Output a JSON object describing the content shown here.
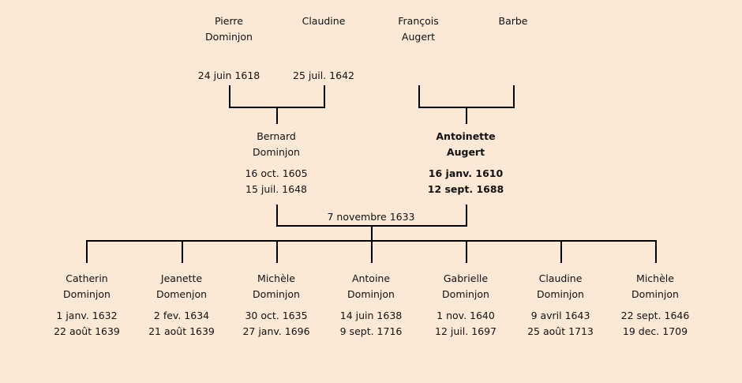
{
  "grandparents": [
    {
      "first": "Pierre",
      "last": "Dominjon",
      "date": "24 juin 1618"
    },
    {
      "first": "Claudine",
      "last": "",
      "date": "25 juil. 1642"
    },
    {
      "first": "François",
      "last": "Augert",
      "date": ""
    },
    {
      "first": "Barbe",
      "last": "",
      "date": ""
    }
  ],
  "parents": [
    {
      "first": "Bernard",
      "last": "Dominjon",
      "birth": "16 oct. 1605",
      "death": "15 juil. 1648",
      "highlighted": false
    },
    {
      "first": "Antoinette",
      "last": "Augert",
      "birth": "16 janv. 1610",
      "death": "12 sept. 1688",
      "highlighted": true
    }
  ],
  "marriage": "7 novembre 1633",
  "children": [
    {
      "first": "Catherin",
      "last": "Dominjon",
      "birth": "1 janv. 1632",
      "death": "22 août 1639"
    },
    {
      "first": "Jeanette",
      "last": "Domenjon",
      "birth": "2 fev. 1634",
      "death": "21 août 1639"
    },
    {
      "first": "Michèle",
      "last": "Dominjon",
      "birth": "30 oct. 1635",
      "death": "27 janv. 1696"
    },
    {
      "first": "Antoine",
      "last": "Dominjon",
      "birth": "14 juin 1638",
      "death": "9 sept. 1716"
    },
    {
      "first": "Gabrielle",
      "last": "Dominjon",
      "birth": "1 nov. 1640",
      "death": "12 juil. 1697"
    },
    {
      "first": "Claudine",
      "last": "Dominjon",
      "birth": "9 avril 1643",
      "death": "25 août 1713"
    },
    {
      "first": "Michèle",
      "last": "Dominjon",
      "birth": "22 sept. 1646",
      "death": "19 dec. 1709"
    }
  ],
  "colors": {
    "background": "#fbe9d6",
    "line": "#000000"
  }
}
